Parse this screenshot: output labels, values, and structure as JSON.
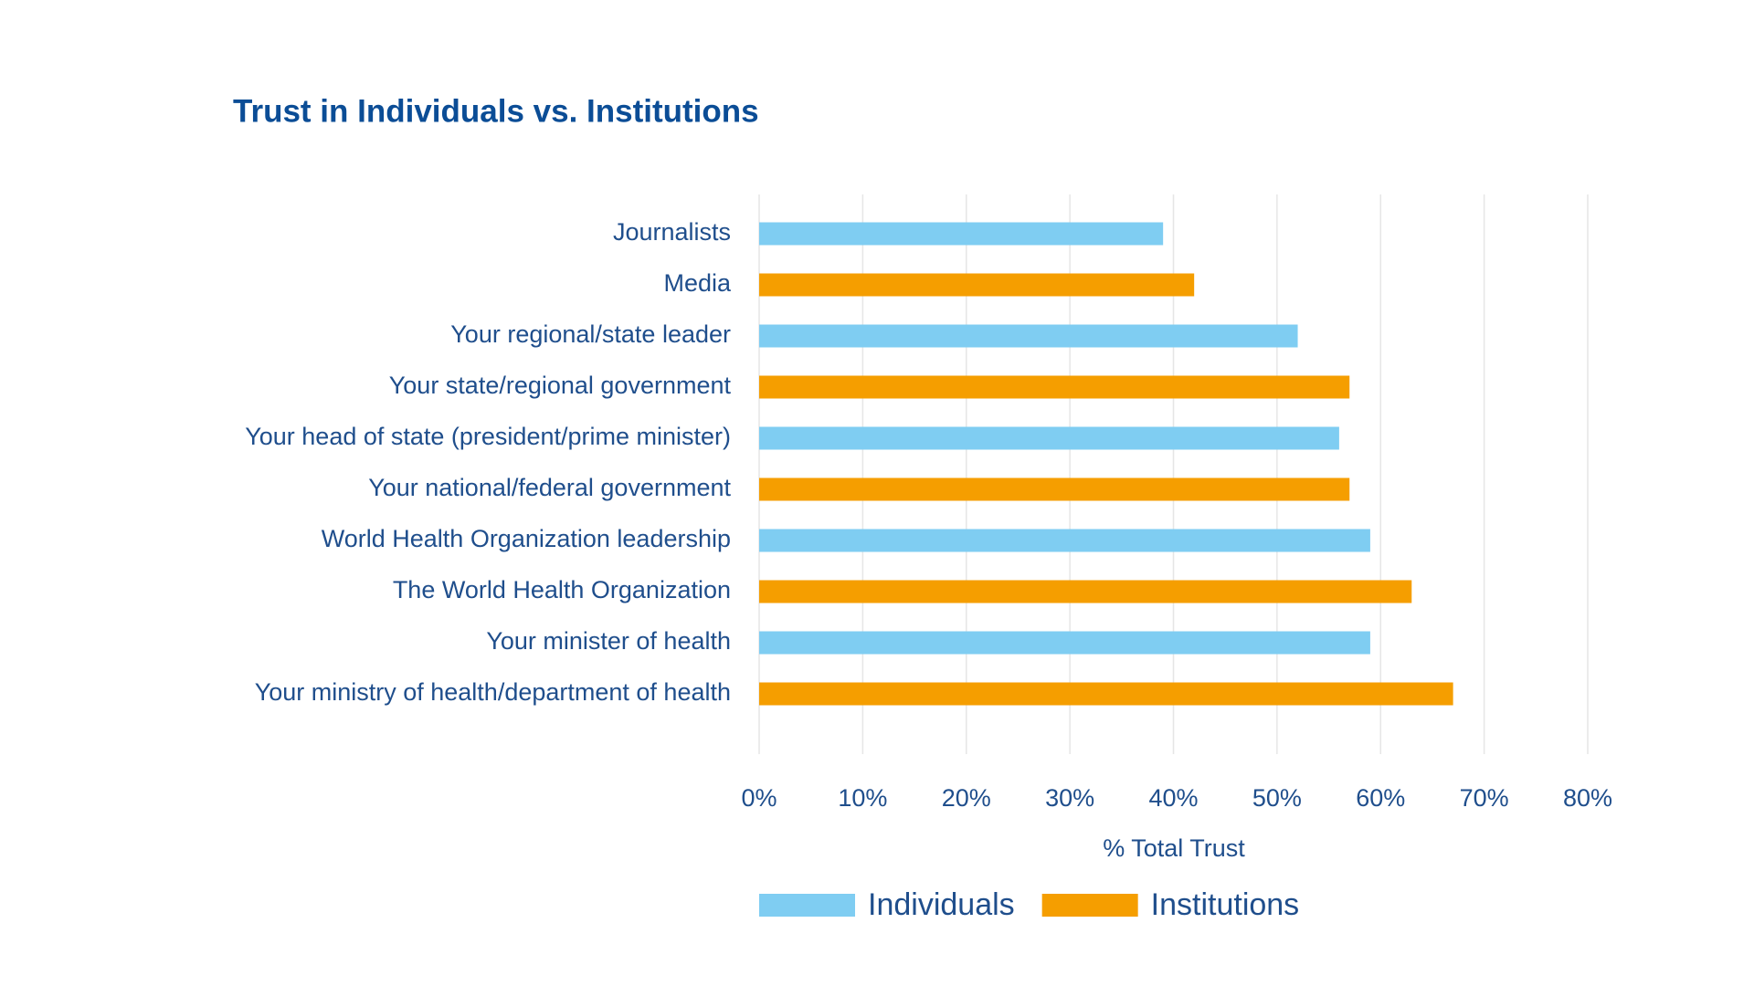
{
  "chart_data": {
    "type": "bar",
    "orientation": "horizontal",
    "title": "Trust in Individuals vs. Institutions",
    "x_label": "% Total Trust",
    "categories": [
      "Journalists",
      "Media",
      "Your regional/state leader",
      "Your state/regional government",
      "Your head of state (president/prime minister)",
      "Your national/federal government",
      "World Health Organization leadership",
      "The World Health Organization",
      "Your minister of health",
      "Your ministry of health/department of health"
    ],
    "series": [
      {
        "name": "Individuals",
        "color": "#7fcdf2",
        "values": [
          39,
          null,
          52,
          null,
          56,
          null,
          59,
          null,
          59,
          null
        ]
      },
      {
        "name": "Institutions",
        "color": "#f59e00",
        "values": [
          null,
          42,
          null,
          57,
          null,
          57,
          null,
          63,
          null,
          67
        ]
      }
    ],
    "xlim": [
      0,
      80
    ],
    "xticks": [
      {
        "value": 0,
        "label": "0%"
      },
      {
        "value": 10,
        "label": "10%"
      },
      {
        "value": 20,
        "label": "20%"
      },
      {
        "value": 30,
        "label": "30%"
      },
      {
        "value": 40,
        "label": "40%"
      },
      {
        "value": 50,
        "label": "50%"
      },
      {
        "value": 60,
        "label": "60%"
      },
      {
        "value": 70,
        "label": "70%"
      },
      {
        "value": 80,
        "label": "80%"
      }
    ],
    "grid": true,
    "legend": "bottom"
  }
}
